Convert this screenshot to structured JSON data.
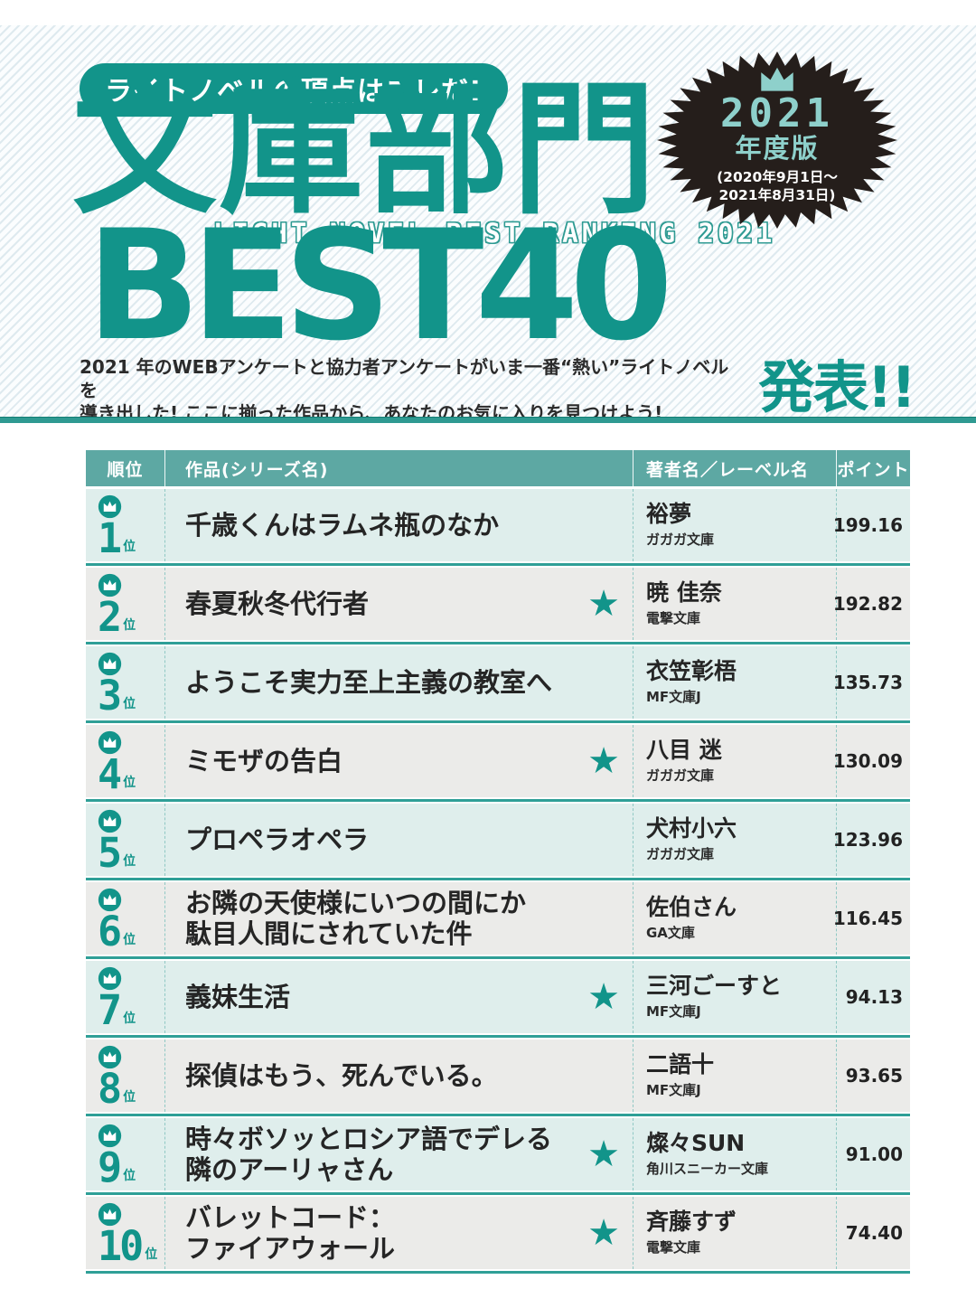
{
  "header": {
    "tagline": "ライトノベルの頂点はコレだ!",
    "title": "文庫部門",
    "subtitle_en": "LIGHT NOVEL BEST RANKING 2021",
    "best40": "BEST40",
    "announce": "発表!!",
    "description_line1": "2021 年のWEBアンケートと協力者アンケートがいま一番“熱い”ライトノベルを",
    "description_line2": "導き出した! ここに揃った作品から、あなたのお気に入りを見つけよう!",
    "badge": {
      "crown_icon": "crown-icon",
      "year": "2021",
      "edition": "年度版",
      "period_line1": "(2020年9月1日～",
      "period_line2": "2021年8月31日)"
    }
  },
  "colors": {
    "accent_teal": "#12948a",
    "table_header_teal": "#5da8a3",
    "separator_teal": "#2f9f97",
    "row_tint": "#dfeeec",
    "row_gray": "#ebebe9",
    "badge_black": "#251e1b",
    "badge_light_teal": "#8ed0cb",
    "text_dark": "#252525"
  },
  "table": {
    "headers": {
      "rank": "順位",
      "title": "作品(シリーズ名)",
      "author": "著者名／レーベル名",
      "points": "ポイント"
    },
    "rank_suffix": "位",
    "rank_icon": "crown-icon",
    "star_icon": "star-icon",
    "rows": [
      {
        "rank": "1",
        "title_lines": [
          "千歳くんはラムネ瓶のなか"
        ],
        "star": false,
        "author": "裕夢",
        "label": "ガガガ文庫",
        "points": "199.16"
      },
      {
        "rank": "2",
        "title_lines": [
          "春夏秋冬代行者"
        ],
        "star": true,
        "author": "暁 佳奈",
        "label": "電撃文庫",
        "points": "192.82"
      },
      {
        "rank": "3",
        "title_lines": [
          "ようこそ実力至上主義の教室へ"
        ],
        "star": false,
        "author": "衣笠彰梧",
        "label": "MF文庫J",
        "points": "135.73"
      },
      {
        "rank": "4",
        "title_lines": [
          "ミモザの告白"
        ],
        "star": true,
        "author": "八目 迷",
        "label": "ガガガ文庫",
        "points": "130.09"
      },
      {
        "rank": "5",
        "title_lines": [
          "プロペラオペラ"
        ],
        "star": false,
        "author": "犬村小六",
        "label": "ガガガ文庫",
        "points": "123.96"
      },
      {
        "rank": "6",
        "title_lines": [
          "お隣の天使様にいつの間にか",
          "駄目人間にされていた件"
        ],
        "star": false,
        "author": "佐伯さん",
        "label": "GA文庫",
        "points": "116.45"
      },
      {
        "rank": "7",
        "title_lines": [
          "義妹生活"
        ],
        "star": true,
        "author": "三河ごーすと",
        "label": "MF文庫J",
        "points": "94.13"
      },
      {
        "rank": "8",
        "title_lines": [
          "探偵はもう、死んでいる。"
        ],
        "star": false,
        "author": "二語十",
        "label": "MF文庫J",
        "points": "93.65"
      },
      {
        "rank": "9",
        "title_lines": [
          "時々ボソッとロシア語でデレる",
          "隣のアーリャさん"
        ],
        "star": true,
        "author": "燦々SUN",
        "label": "角川スニーカー文庫",
        "points": "91.00"
      },
      {
        "rank": "10",
        "title_lines": [
          "バレットコード：",
          "ファイアウォール"
        ],
        "star": true,
        "author": "斉藤すず",
        "label": "電撃文庫",
        "points": "74.40"
      }
    ]
  }
}
